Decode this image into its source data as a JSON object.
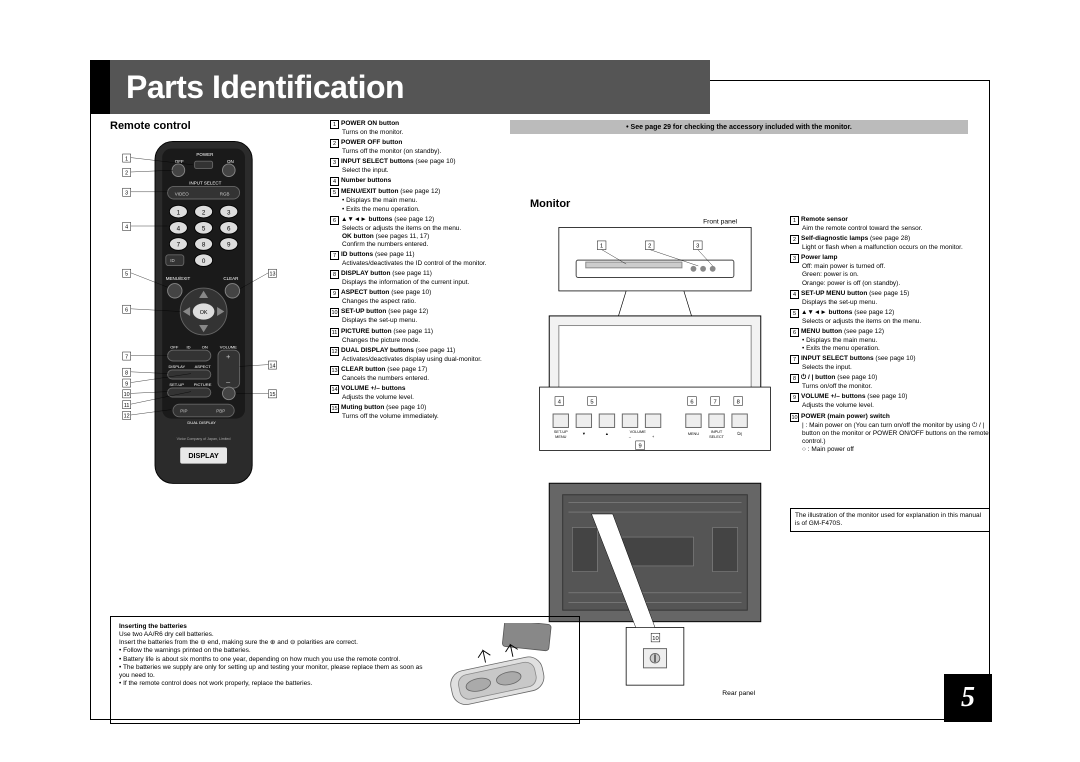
{
  "title": "Parts Identification",
  "page_number": "5",
  "note_bar": "• See page 29 for checking the accessory included with the monitor.",
  "remote": {
    "heading": "Remote control",
    "brand_line": "Victor Company of Japan, Limited",
    "display_label": "DISPLAY",
    "labels": {
      "off": "OFF",
      "power": "POWER",
      "on": "ON",
      "input_select": "INPUT SELECT",
      "video": "VIDEO",
      "rgb": "RGB",
      "id": "ID",
      "menu_exit": "MENU/EXIT",
      "clear": "CLEAR",
      "ok": "OK",
      "off2": "OFF",
      "id2": "ID",
      "on2": "ON",
      "volume": "VOLUME",
      "display_btn": "DISPLAY",
      "aspect": "ASPECT",
      "setup": "SET-UP",
      "picture": "PICTURE",
      "pip": "PIP",
      "pbp": "PBP",
      "dual_display": "DUAL DISPLAY"
    },
    "callouts_left": [
      "1",
      "2",
      "3",
      "4",
      "5",
      "6",
      "7",
      "8",
      "9",
      "10",
      "11",
      "12"
    ],
    "callouts_right": [
      "13",
      "14",
      "15"
    ],
    "descriptions": [
      {
        "n": "1",
        "t": "POWER ON button",
        "d": [
          "Turns on the monitor."
        ]
      },
      {
        "n": "2",
        "t": "POWER OFF button",
        "d": [
          "Turns off the monitor (on standby)."
        ]
      },
      {
        "n": "3",
        "t": "INPUT SELECT buttons",
        "ref": "(see page 10)",
        "d": [
          "Select the input."
        ]
      },
      {
        "n": "4",
        "t": "Number buttons",
        "d": []
      },
      {
        "n": "5",
        "t": "MENU/EXIT button",
        "ref": "(see page 12)",
        "d": [
          "• Displays the main menu.",
          "• Exits the menu operation."
        ]
      },
      {
        "n": "6",
        "t": "▲▼◄► buttons",
        "ref": "(see page 12)",
        "d": [
          "Selects or adjusts the items on the menu.",
          "<b>OK button</b> (see pages 11, 17)",
          "Confirm the numbers entered."
        ]
      },
      {
        "n": "7",
        "t": "ID buttons",
        "ref": "(see page 11)",
        "d": [
          "Activates/deactivates the ID control of the monitor."
        ]
      },
      {
        "n": "8",
        "t": "DISPLAY button",
        "ref": "(see page 11)",
        "d": [
          "Displays the information of the current input."
        ]
      },
      {
        "n": "9",
        "t": "ASPECT button",
        "ref": "(see page 10)",
        "d": [
          "Changes the aspect ratio."
        ]
      },
      {
        "n": "10",
        "t": "SET-UP button",
        "ref": "(see page 12)",
        "d": [
          "Displays the set-up menu."
        ]
      },
      {
        "n": "11",
        "t": "PICTURE button",
        "ref": "(see page 11)",
        "d": [
          "Changes the picture mode."
        ]
      },
      {
        "n": "12",
        "t": "DUAL DISPLAY buttons",
        "ref": "(see page 11)",
        "d": [
          "Activates/deactivates display using dual-monitor."
        ]
      },
      {
        "n": "13",
        "t": "CLEAR button",
        "ref": "(see page 17)",
        "d": [
          "Cancels the numbers entered."
        ]
      },
      {
        "n": "14",
        "t": "VOLUME +/– buttons",
        "d": [
          "Adjusts the volume level."
        ]
      },
      {
        "n": "15",
        "t": "Muting button",
        "ref": "(see page 10)",
        "d": [
          "Turns off the volume immediately."
        ]
      }
    ]
  },
  "monitor": {
    "heading": "Monitor",
    "front_label": "Front panel",
    "rear_label": "Rear panel",
    "btn_labels": {
      "setup_menu": "SET-UP\nMENU",
      "down": "▼",
      "up": "▲",
      "vol_minus": "VOLUME\n–",
      "vol_plus": "+",
      "menu": "MENU",
      "input_select": "INPUT\nSELECT",
      "power": "⏻ / |"
    },
    "callouts_top": [
      "1",
      "2",
      "3"
    ],
    "callouts_panel": [
      "4",
      "5",
      "6",
      "7",
      "8",
      "9"
    ],
    "callout_rear": "10",
    "descriptions": [
      {
        "n": "1",
        "t": "Remote sensor",
        "d": [
          "Aim the remote control toward the sensor."
        ]
      },
      {
        "n": "2",
        "t": "Self-diagnostic lamps",
        "ref": "(see page 28)",
        "d": [
          "Light or flash when a malfunction occurs on the monitor."
        ]
      },
      {
        "n": "3",
        "t": "Power lamp",
        "d": [
          "Off: main power is turned off.",
          "Green: power is on.",
          "Orange: power is off (on standby)."
        ]
      },
      {
        "n": "4",
        "t": "SET-UP MENU button",
        "ref": "(see page 15)",
        "d": [
          "Displays the set-up menu."
        ]
      },
      {
        "n": "5",
        "t": "▲▼◄► buttons",
        "ref": "(see page 12)",
        "d": [
          "Selects or adjusts the items on the menu."
        ]
      },
      {
        "n": "6",
        "t": "MENU button",
        "ref": "(see page 12)",
        "d": [
          "• Displays the main menu.",
          "• Exits the menu operation."
        ]
      },
      {
        "n": "7",
        "t": "INPUT SELECT buttons",
        "ref": "(see page 10)",
        "d": [
          "Selects the input."
        ]
      },
      {
        "n": "8",
        "t": "⏻ / | button",
        "ref": "(see page 10)",
        "d": [
          "Turns on/off the monitor."
        ]
      },
      {
        "n": "9",
        "t": "VOLUME +/– buttons",
        "ref": "(see page 10)",
        "d": [
          "Adjusts the volume level."
        ]
      },
      {
        "n": "10",
        "t": "POWER (main power) switch",
        "d": [
          "| : Main power on (You can turn on/off the monitor by using ⏻ / | button on the monitor or POWER ON/OFF buttons on the remote control.)",
          "○ : Main power off"
        ]
      }
    ]
  },
  "illustration_note": "The illustration of the monitor used for explanation in this manual is of GM-F470S.",
  "battery": {
    "heading": "Inserting the batteries",
    "lines": [
      "Use two AA/R6 dry cell batteries.",
      "Insert the batteries from the ⊖ end, making sure the ⊕ and ⊖ polarities are correct.",
      "• Follow the warnings printed on the batteries.",
      "• Battery life is about six months to one year, depending on how much you use the remote control.",
      "• The batteries we supply are only for setting up and testing your monitor, please replace them as soon as you need to.",
      "• If the remote control does not work properly, replace the batteries."
    ]
  },
  "colors": {
    "title_bg": "#555555",
    "tab_bg": "#000000",
    "note_bg": "#bbbbbb",
    "page_box": "#000000"
  }
}
